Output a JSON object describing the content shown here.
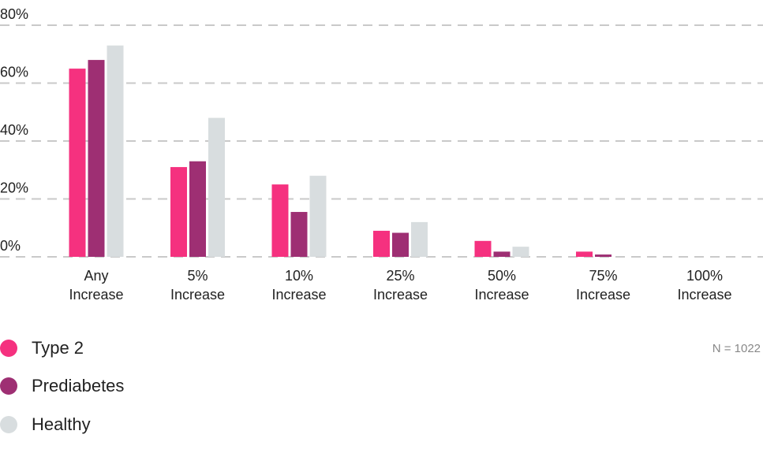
{
  "chart_data": {
    "type": "bar",
    "categories": [
      [
        "Any",
        "Increase"
      ],
      [
        "5%",
        "Increase"
      ],
      [
        "10%",
        "Increase"
      ],
      [
        "25%",
        "Increase"
      ],
      [
        "50%",
        "Increase"
      ],
      [
        "75%",
        "Increase"
      ],
      [
        "100%",
        "Increase"
      ]
    ],
    "series": [
      {
        "name": "Type 2",
        "color": "#f5317f",
        "values": [
          65,
          31,
          25,
          9,
          5.5,
          1.8,
          0
        ]
      },
      {
        "name": "Prediabetes",
        "color": "#9e2f73",
        "values": [
          68,
          33,
          15.5,
          8.3,
          1.8,
          0.8,
          0
        ]
      },
      {
        "name": "Healthy",
        "color": "#d8dddf",
        "values": [
          73,
          48,
          28,
          12,
          3.5,
          0,
          0
        ]
      }
    ],
    "y_ticks": [
      "0%",
      "20%",
      "40%",
      "60%",
      "80%"
    ],
    "ylim": [
      0,
      80
    ],
    "grid": true,
    "legend_position": "bottom-left",
    "note": "N = 1022"
  }
}
